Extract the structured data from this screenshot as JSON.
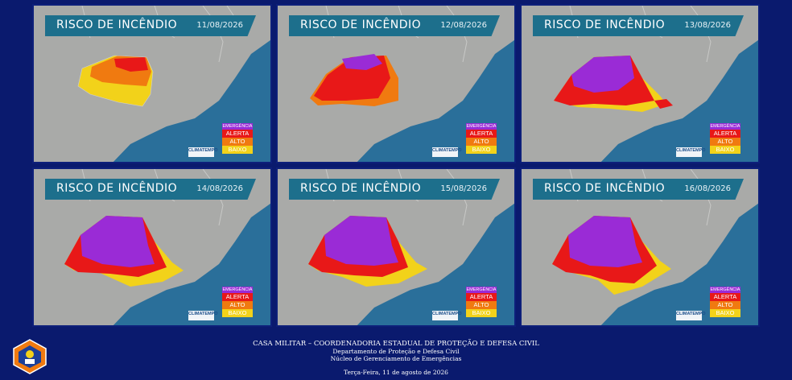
{
  "panels": [
    {
      "title": "RISCO DE INCÊNDIO",
      "date": "11/08/2026"
    },
    {
      "title": "RISCO DE INCÊNDIO",
      "date": "12/08/2026"
    },
    {
      "title": "RISCO DE INCÊNDIO",
      "date": "13/08/2026"
    },
    {
      "title": "RISCO DE INCÊNDIO",
      "date": "14/08/2026"
    },
    {
      "title": "RISCO DE INCÊNDIO",
      "date": "15/08/2026"
    },
    {
      "title": "RISCO DE INCÊNDIO",
      "date": "16/08/2026"
    }
  ],
  "legend": {
    "items": [
      {
        "label": "EMERGÊNCIA",
        "color": "#9a2bd6"
      },
      {
        "label": "ALERTA",
        "color": "#e81818"
      },
      {
        "label": "ALTO",
        "color": "#f07a10"
      },
      {
        "label": "BAIXO",
        "color": "#f2d21a"
      }
    ]
  },
  "brand": "CLIMATEMPO",
  "footer": {
    "line1": "CASA MILITAR – COORDENADORIA ESTADUAL DE PROTEÇÃO E DEFESA CIVIL",
    "line2": "Departamento de Proteção e Defesa Civil",
    "line3": "Núcleo de Gerenciamento de Emergências",
    "line4": "Terça-Feira, 11 de agosto de 2026"
  },
  "colors": {
    "background": "#0a1a6e",
    "ocean": "#2a6f9a",
    "land": "#a9aaa8",
    "header": "#1d6f8c"
  }
}
